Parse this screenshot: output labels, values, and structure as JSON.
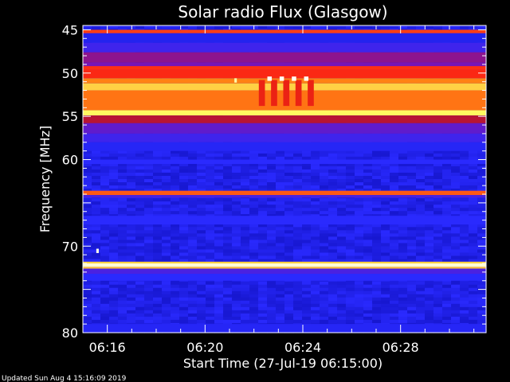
{
  "chart_data": {
    "type": "heatmap",
    "title": "Solar radio Flux (Glasgow)",
    "xlabel": "Start Time (27-Jul-19 06:15:00)",
    "ylabel": "Frequency [MHz]",
    "footer": "Updated Sun Aug  4 15:16:09 2019",
    "x_unit": "minutes since 06:15:00",
    "xlim": [
      0.0,
      16.5
    ],
    "ylim": [
      80,
      44.5
    ],
    "y_scale": "linear",
    "x_ticks": [
      {
        "value": 1,
        "label": "06:16"
      },
      {
        "value": 5,
        "label": "06:20"
      },
      {
        "value": 9,
        "label": "06:24"
      },
      {
        "value": 13,
        "label": "06:28"
      }
    ],
    "y_ticks": [
      {
        "value": 45,
        "label": "45"
      },
      {
        "value": 50,
        "label": "50"
      },
      {
        "value": 55,
        "label": "55"
      },
      {
        "value": 60,
        "label": "60"
      },
      {
        "value": 70,
        "label": "70"
      },
      {
        "value": 80,
        "label": "80"
      }
    ],
    "colorscale": [
      "#1414c8",
      "#2a2aff",
      "#7a14b4",
      "#c81414",
      "#ff2a14",
      "#ff8c14",
      "#ffff64",
      "#ffffff"
    ],
    "background_intensity": 0.08,
    "bands": [
      {
        "f1": 45.0,
        "f2": 45.4,
        "intensity": 0.6
      },
      {
        "f1": 45.4,
        "f2": 46.5,
        "intensity": 0.1
      },
      {
        "f1": 46.5,
        "f2": 47.6,
        "intensity": 0.18
      },
      {
        "f1": 47.6,
        "f2": 48.8,
        "intensity": 0.32
      },
      {
        "f1": 48.8,
        "f2": 49.6,
        "intensity": 0.28
      },
      {
        "f1": 49.2,
        "f2": 49.6,
        "intensity": 0.58
      },
      {
        "f1": 49.6,
        "f2": 50.6,
        "intensity": 0.56
      },
      {
        "f1": 50.6,
        "f2": 51.2,
        "intensity": 0.7
      },
      {
        "f1": 51.2,
        "f2": 52.0,
        "intensity": 0.8
      },
      {
        "f1": 52.0,
        "f2": 54.3,
        "intensity": 0.68
      },
      {
        "f1": 54.3,
        "f2": 54.9,
        "intensity": 0.85
      },
      {
        "f1": 54.9,
        "f2": 55.8,
        "intensity": 0.4
      },
      {
        "f1": 55.8,
        "f2": 57.0,
        "intensity": 0.24
      },
      {
        "f1": 57.0,
        "f2": 58.0,
        "intensity": 0.18
      },
      {
        "f1": 58.0,
        "f2": 59.0,
        "intensity": 0.12
      },
      {
        "f1": 60.0,
        "f2": 60.5,
        "intensity": 0.14
      },
      {
        "f1": 63.6,
        "f2": 64.1,
        "intensity": 0.64
      },
      {
        "f1": 64.1,
        "f2": 64.4,
        "intensity": 0.2
      },
      {
        "f1": 66.5,
        "f2": 67.5,
        "intensity": 0.14
      },
      {
        "f1": 71.8,
        "f2": 72.0,
        "intensity": 0.8
      },
      {
        "f1": 72.0,
        "f2": 72.4,
        "intensity": 0.96
      },
      {
        "f1": 72.4,
        "f2": 72.6,
        "intensity": 0.78
      },
      {
        "f1": 72.6,
        "f2": 73.2,
        "intensity": 0.2
      },
      {
        "f1": 73.2,
        "f2": 74.0,
        "intensity": 0.14
      },
      {
        "f1": 79.0,
        "f2": 80.0,
        "intensity": 0.12
      }
    ],
    "hotspots": [
      {
        "t": 7.55,
        "f1": 50.4,
        "f2": 50.9,
        "dt": 0.18,
        "intensity": 0.99
      },
      {
        "t": 8.05,
        "f1": 50.4,
        "f2": 50.9,
        "dt": 0.18,
        "intensity": 0.99
      },
      {
        "t": 8.55,
        "f1": 50.4,
        "f2": 50.9,
        "dt": 0.18,
        "intensity": 0.99
      },
      {
        "t": 9.05,
        "f1": 50.4,
        "f2": 50.9,
        "dt": 0.18,
        "intensity": 0.99
      },
      {
        "t": 6.2,
        "f1": 50.6,
        "f2": 51.1,
        "dt": 0.1,
        "intensity": 0.92
      },
      {
        "t": 0.55,
        "f1": 70.3,
        "f2": 70.8,
        "dt": 0.1,
        "intensity": 0.98
      }
    ],
    "burst_streaks": [
      {
        "t": 7.2,
        "f1": 50.8,
        "f2": 53.8,
        "dt": 0.25,
        "intensity": 0.52
      },
      {
        "t": 7.7,
        "f1": 50.8,
        "f2": 53.8,
        "dt": 0.25,
        "intensity": 0.52
      },
      {
        "t": 8.2,
        "f1": 50.8,
        "f2": 53.8,
        "dt": 0.25,
        "intensity": 0.52
      },
      {
        "t": 8.7,
        "f1": 50.8,
        "f2": 53.8,
        "dt": 0.25,
        "intensity": 0.52
      },
      {
        "t": 9.2,
        "f1": 50.8,
        "f2": 53.8,
        "dt": 0.25,
        "intensity": 0.52
      }
    ]
  }
}
